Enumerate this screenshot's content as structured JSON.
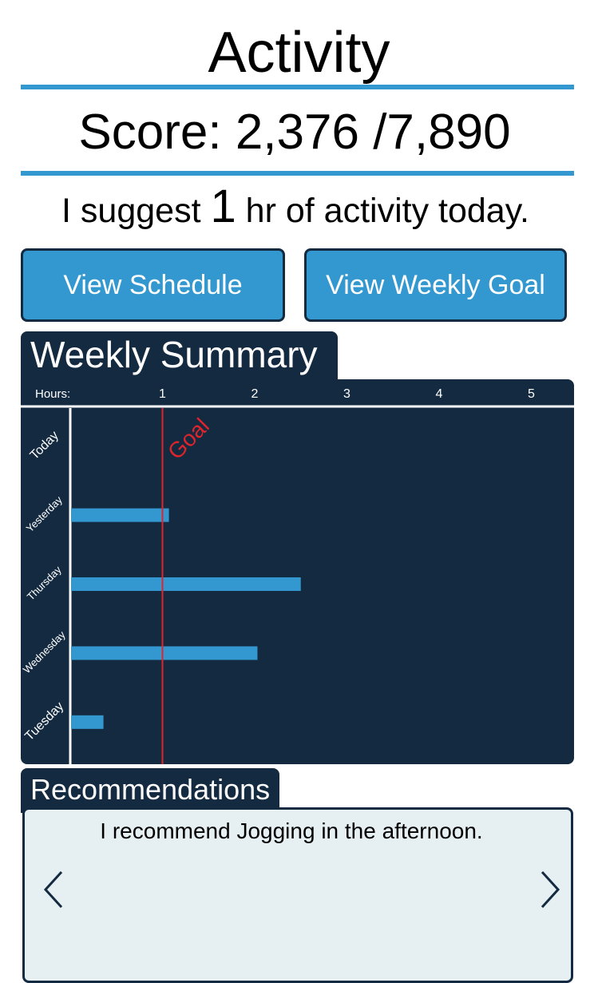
{
  "header": {
    "title": "Activity"
  },
  "score": {
    "text": "Score: 2,376 /7,890"
  },
  "suggestion": {
    "prefix": "I suggest ",
    "hours": "1",
    "suffix": " hr of activity today."
  },
  "buttons": {
    "view_schedule": "View Schedule",
    "view_weekly_goal": "View Weekly Goal"
  },
  "weekly_summary": {
    "title": "Weekly Summary",
    "axis_label": "Hours:",
    "goal_label": "Goal",
    "chart_data": {
      "type": "bar",
      "orientation": "horizontal",
      "categories": [
        "Today",
        "Yesterday",
        "Thursday",
        "Wednesday",
        "Tuesday"
      ],
      "values": [
        0,
        1.07,
        2.5,
        2.03,
        0.36
      ],
      "x_ticks": [
        1,
        2,
        3,
        4,
        5
      ],
      "xlabel": "Hours:",
      "xlim": [
        0,
        5.5
      ],
      "goal": 1,
      "grid": false,
      "colors": {
        "background": "#142a40",
        "bar": "#3398d0",
        "goal_line": "#e0242b",
        "text": "#ffffff"
      }
    }
  },
  "recommendations": {
    "title": "Recommendations",
    "text": "I recommend Jogging in the afternoon.",
    "prev_icon": "chevron-left-icon",
    "next_icon": "chevron-right-icon"
  },
  "colors": {
    "accent": "#3398d0",
    "dark": "#142a40",
    "panel_light": "#e6eff1",
    "goal": "#e0242b"
  }
}
